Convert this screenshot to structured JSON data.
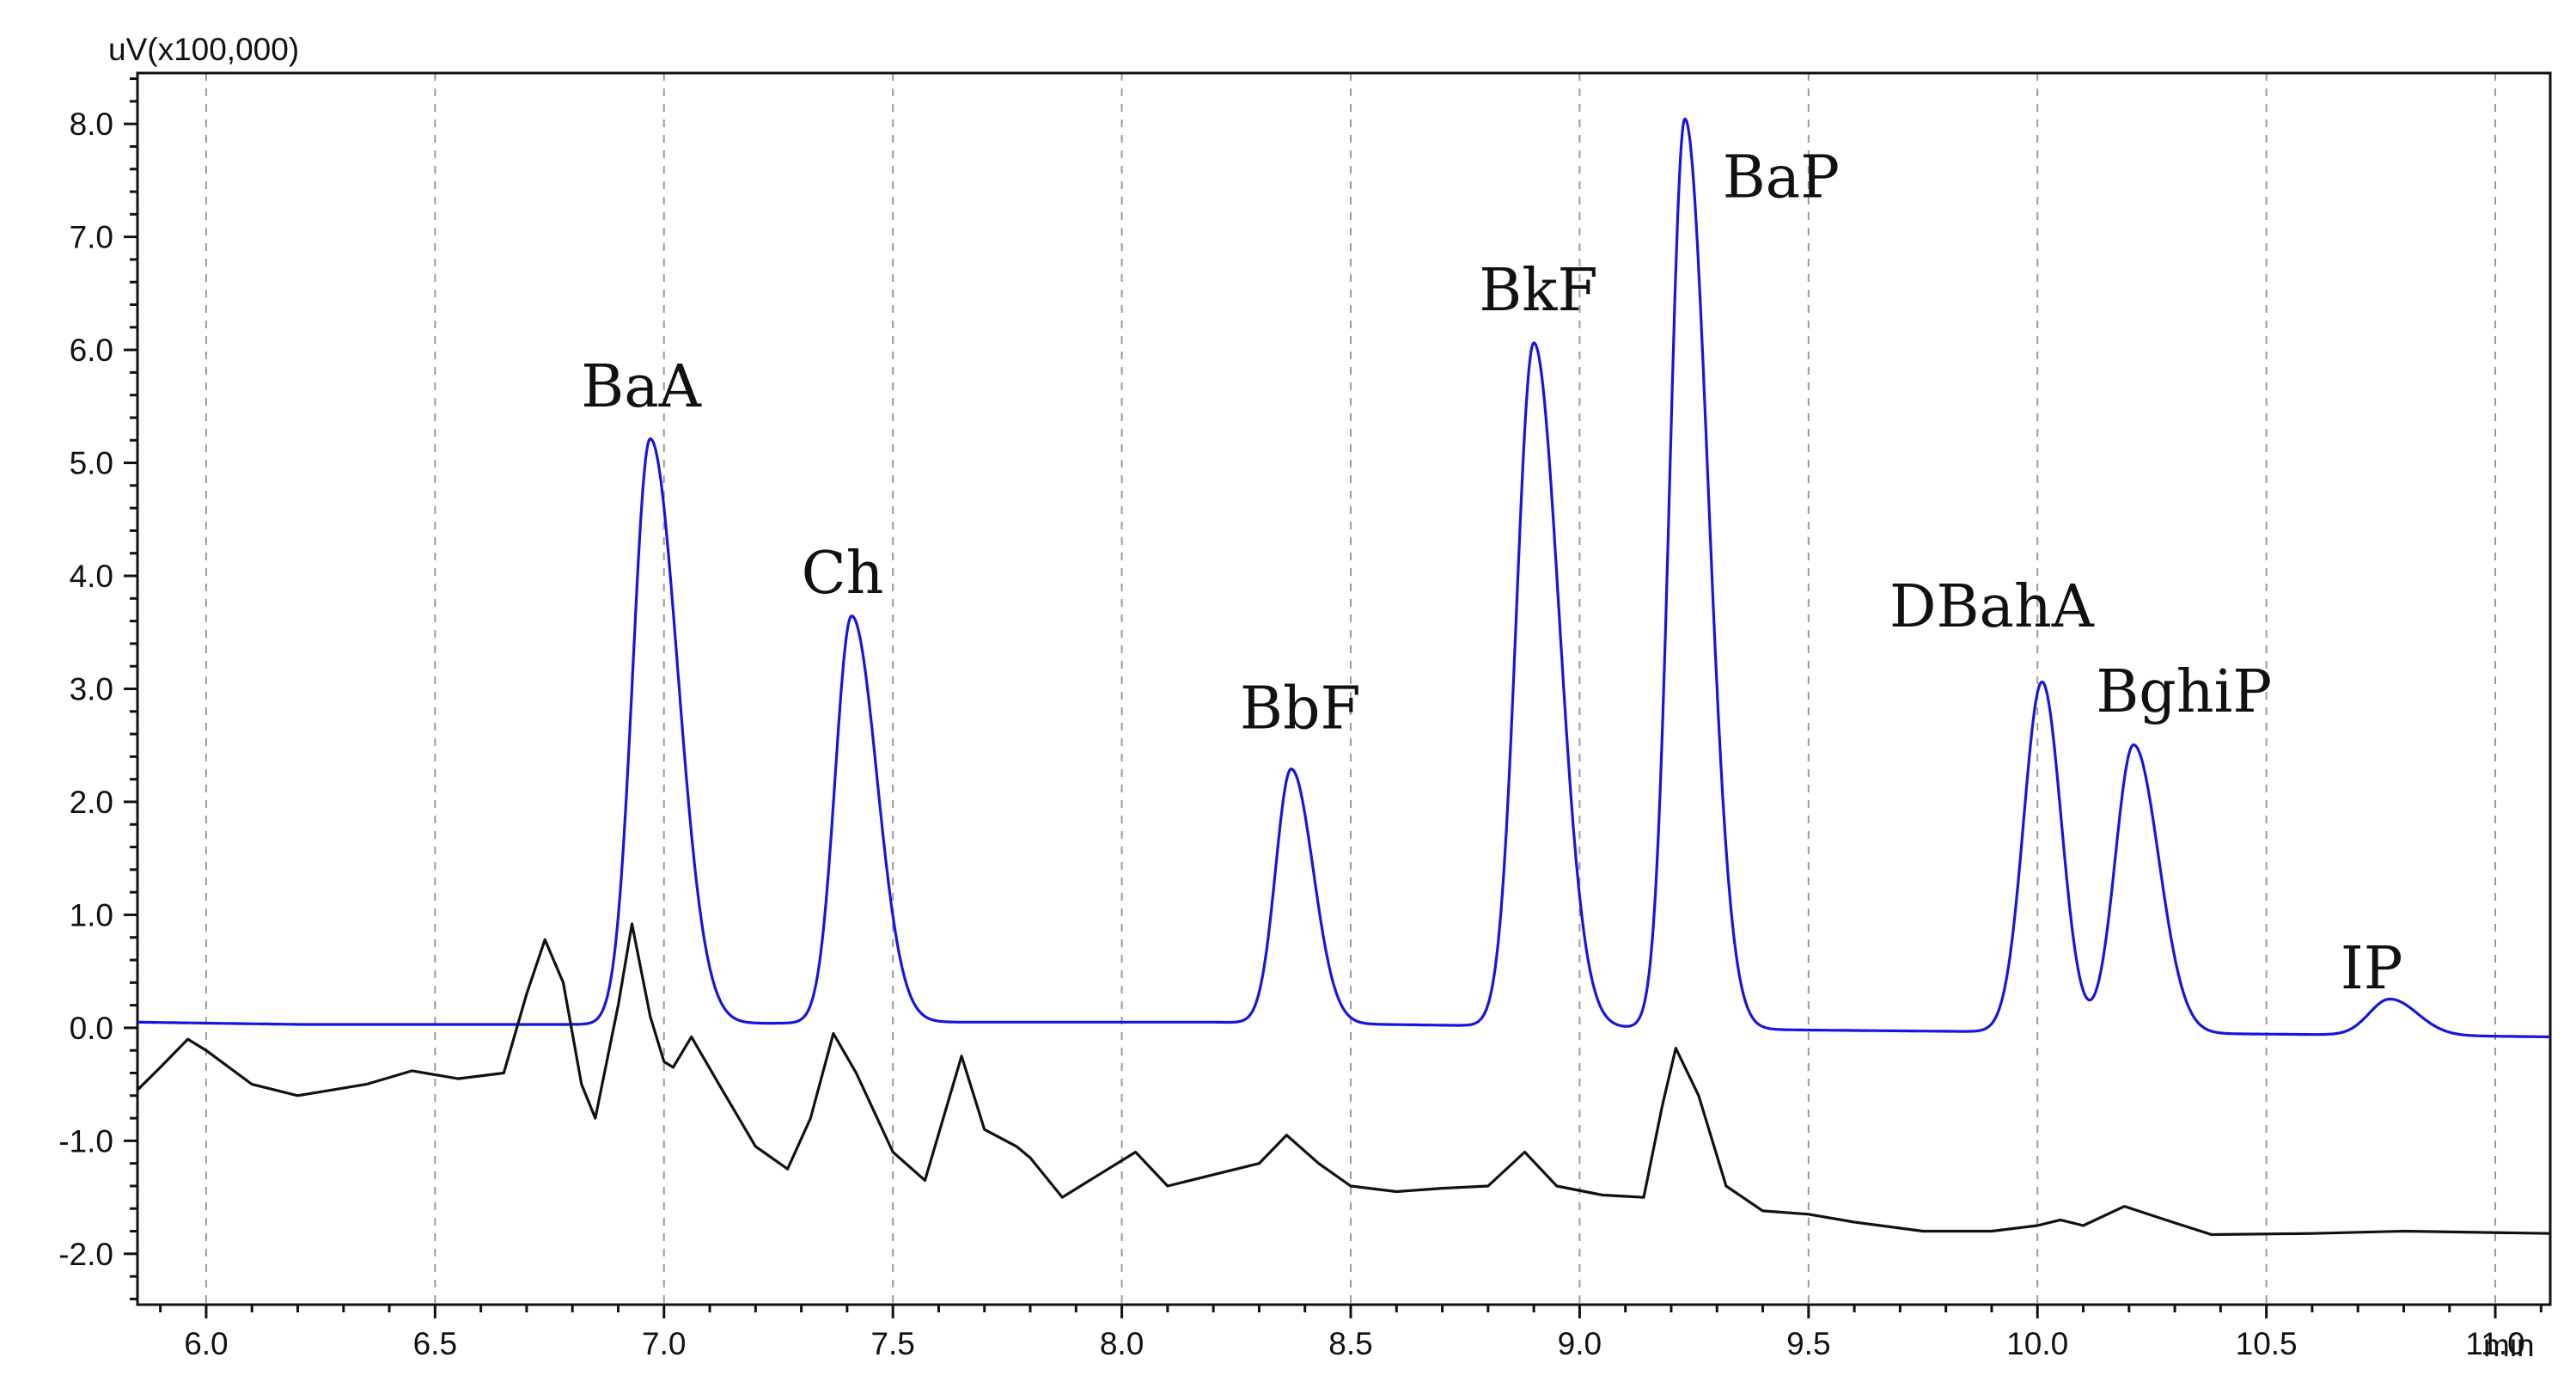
{
  "chart_data": {
    "type": "line",
    "title": "",
    "xlabel": "min",
    "ylabel": "uV(x100,000)",
    "xlim": [
      5.85,
      11.12
    ],
    "ylim": [
      -2.45,
      8.45
    ],
    "x_ticks": [
      "6.0",
      "6.5",
      "7.0",
      "7.5",
      "8.0",
      "8.5",
      "9.0",
      "9.5",
      "10.0",
      "10.5",
      "11.0"
    ],
    "y_ticks": [
      "-2.0",
      "-1.0",
      "0.0",
      "1.0",
      "2.0",
      "3.0",
      "4.0",
      "5.0",
      "6.0",
      "7.0",
      "8.0"
    ],
    "grid": {
      "vertical": true,
      "horizontal": false
    },
    "series": [
      {
        "color": "#1515e0",
        "baseline": [
          [
            5.85,
            0.05
          ],
          [
            6.2,
            0.03
          ],
          [
            6.85,
            0.03
          ],
          [
            7.6,
            0.05
          ],
          [
            8.2,
            0.05
          ],
          [
            9.5,
            -0.02
          ],
          [
            10.9,
            -0.07
          ],
          [
            11.12,
            -0.08
          ]
        ],
        "peaks": [
          {
            "label": "BaA",
            "x": 6.97,
            "height": 5.18,
            "w_left": 0.038,
            "w_right": 0.06
          },
          {
            "label": "Ch",
            "x": 7.41,
            "height": 3.6,
            "w_left": 0.036,
            "w_right": 0.055
          },
          {
            "label": "BbF",
            "x": 8.37,
            "height": 2.25,
            "w_left": 0.034,
            "w_right": 0.048
          },
          {
            "label": "BkF",
            "x": 8.9,
            "height": 6.05,
            "w_left": 0.038,
            "w_right": 0.055
          },
          {
            "label": "BaP",
            "x": 9.23,
            "height": 8.05,
            "w_left": 0.033,
            "w_right": 0.05
          },
          {
            "label": "DBahA",
            "x": 10.01,
            "height": 3.1,
            "w_left": 0.04,
            "w_right": 0.042
          },
          {
            "label": "BghiP",
            "x": 10.21,
            "height": 2.55,
            "w_left": 0.04,
            "w_right": 0.055
          },
          {
            "label": "IP",
            "x": 10.77,
            "height": 0.32,
            "w_left": 0.045,
            "w_right": 0.06
          }
        ]
      },
      {
        "color": "#111111",
        "points": [
          [
            5.85,
            -0.55
          ],
          [
            5.9,
            -0.35
          ],
          [
            5.96,
            -0.1
          ],
          [
            6.0,
            -0.2
          ],
          [
            6.1,
            -0.5
          ],
          [
            6.2,
            -0.6
          ],
          [
            6.35,
            -0.5
          ],
          [
            6.45,
            -0.38
          ],
          [
            6.55,
            -0.45
          ],
          [
            6.65,
            -0.4
          ],
          [
            6.7,
            0.3
          ],
          [
            6.74,
            0.78
          ],
          [
            6.78,
            0.4
          ],
          [
            6.82,
            -0.5
          ],
          [
            6.85,
            -0.8
          ],
          [
            6.9,
            0.2
          ],
          [
            6.93,
            0.92
          ],
          [
            6.97,
            0.1
          ],
          [
            7.0,
            -0.3
          ],
          [
            7.02,
            -0.35
          ],
          [
            7.06,
            -0.08
          ],
          [
            7.12,
            -0.5
          ],
          [
            7.2,
            -1.05
          ],
          [
            7.27,
            -1.25
          ],
          [
            7.32,
            -0.8
          ],
          [
            7.37,
            -0.05
          ],
          [
            7.42,
            -0.4
          ],
          [
            7.5,
            -1.1
          ],
          [
            7.57,
            -1.35
          ],
          [
            7.61,
            -0.8
          ],
          [
            7.65,
            -0.25
          ],
          [
            7.7,
            -0.9
          ],
          [
            7.77,
            -1.05
          ],
          [
            7.8,
            -1.15
          ],
          [
            7.87,
            -1.5
          ],
          [
            7.95,
            -1.3
          ],
          [
            8.03,
            -1.1
          ],
          [
            8.1,
            -1.4
          ],
          [
            8.2,
            -1.3
          ],
          [
            8.3,
            -1.2
          ],
          [
            8.36,
            -0.95
          ],
          [
            8.43,
            -1.2
          ],
          [
            8.5,
            -1.4
          ],
          [
            8.6,
            -1.45
          ],
          [
            8.7,
            -1.42
          ],
          [
            8.8,
            -1.4
          ],
          [
            8.88,
            -1.1
          ],
          [
            8.95,
            -1.4
          ],
          [
            9.05,
            -1.48
          ],
          [
            9.14,
            -1.5
          ],
          [
            9.18,
            -0.7
          ],
          [
            9.21,
            -0.18
          ],
          [
            9.26,
            -0.6
          ],
          [
            9.32,
            -1.4
          ],
          [
            9.4,
            -1.62
          ],
          [
            9.5,
            -1.65
          ],
          [
            9.6,
            -1.72
          ],
          [
            9.75,
            -1.8
          ],
          [
            9.9,
            -1.8
          ],
          [
            10.0,
            -1.75
          ],
          [
            10.05,
            -1.7
          ],
          [
            10.1,
            -1.75
          ],
          [
            10.19,
            -1.58
          ],
          [
            10.28,
            -1.7
          ],
          [
            10.38,
            -1.83
          ],
          [
            10.6,
            -1.82
          ],
          [
            10.8,
            -1.8
          ],
          [
            11.12,
            -1.82
          ]
        ]
      }
    ],
    "peak_labels": [
      {
        "text": "BaA",
        "x": 6.95,
        "y": 5.5
      },
      {
        "text": "Ch",
        "x": 7.39,
        "y": 3.85
      },
      {
        "text": "BbF",
        "x": 8.39,
        "y": 2.65
      },
      {
        "text": "BkF",
        "x": 8.91,
        "y": 6.35
      },
      {
        "text": "BaP",
        "x": 9.44,
        "y": 7.35
      },
      {
        "text": "DBahA",
        "x": 9.9,
        "y": 3.55
      },
      {
        "text": "BghiP",
        "x": 10.32,
        "y": 2.8
      },
      {
        "text": "IP",
        "x": 10.73,
        "y": 0.35
      }
    ]
  }
}
